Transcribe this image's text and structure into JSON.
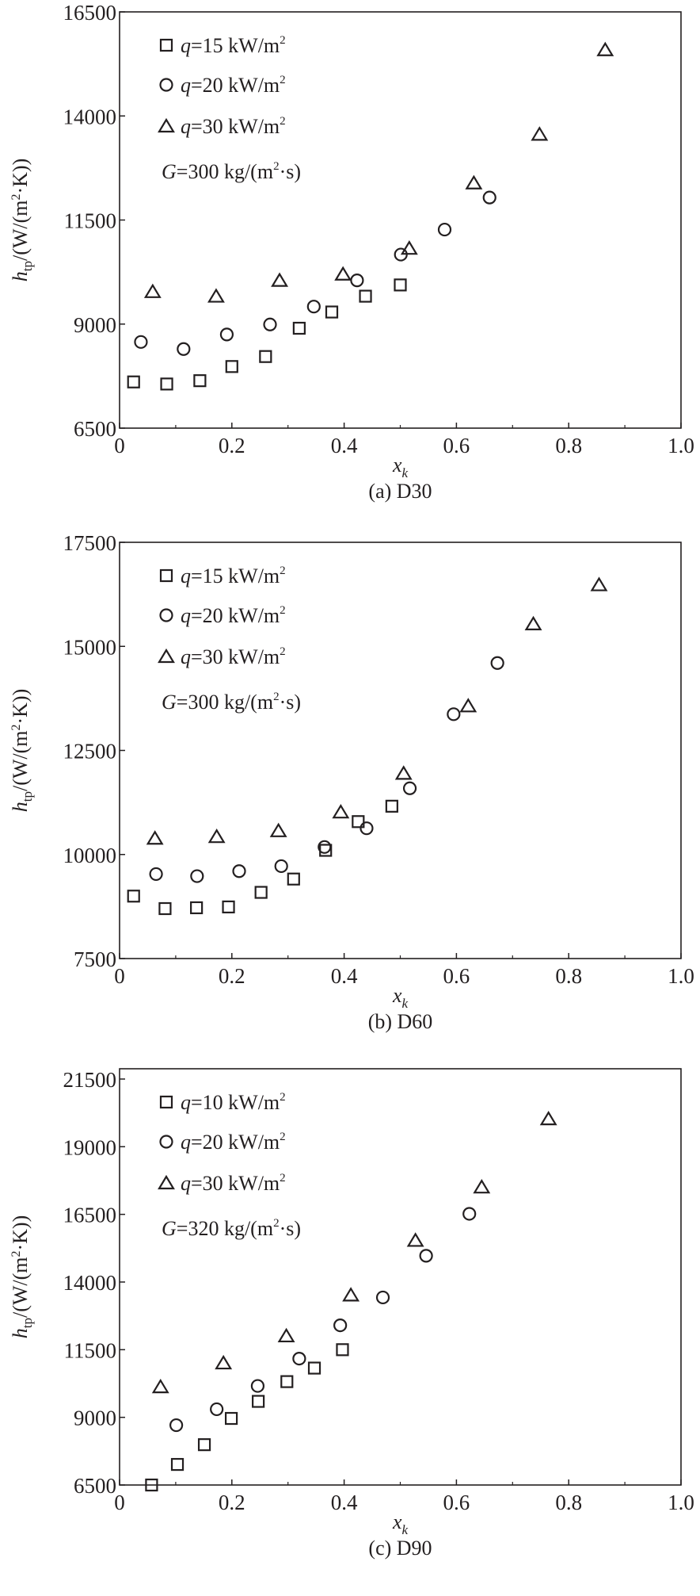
{
  "chart_data": [
    {
      "type": "scatter",
      "caption": "(a) D30",
      "xlabel": "x",
      "xlabel_sub": "k",
      "ylabel": "h",
      "ylabel_sub": "tp",
      "ylabel_unit_pre": "/(W/(m",
      "ylabel_unit_post": "·K))",
      "xlim": [
        0,
        1.0
      ],
      "ylim": [
        6500,
        16500
      ],
      "xticks": [
        "0",
        "0.2",
        "0.4",
        "0.6",
        "0.8",
        "1.0"
      ],
      "yticks": [
        6500,
        9000,
        11500,
        14000,
        16500
      ],
      "legend_position": "top-left",
      "condition": {
        "pre": "G",
        "text": "=300 kg/(m",
        "post": "·s)"
      },
      "series": [
        {
          "name": "q=15 kW/m2",
          "q": "q",
          "label": "=15 kW/m",
          "marker": "square",
          "x": [
            0.025,
            0.084,
            0.143,
            0.2,
            0.26,
            0.32,
            0.378,
            0.438,
            0.5
          ],
          "y": [
            7610,
            7560,
            7640,
            7980,
            8220,
            8900,
            9290,
            9670,
            9940
          ]
        },
        {
          "name": "q=20 kW/m2",
          "q": "q",
          "label": "=20 kW/m",
          "marker": "circle",
          "x": [
            0.038,
            0.114,
            0.191,
            0.268,
            0.346,
            0.423,
            0.501,
            0.579,
            0.659
          ],
          "y": [
            8570,
            8400,
            8750,
            8990,
            9420,
            10050,
            10670,
            11270,
            12040
          ]
        },
        {
          "name": "q=30 kW/m2",
          "q": "q",
          "label": "=30 kW/m",
          "marker": "triangle",
          "x": [
            0.059,
            0.172,
            0.285,
            0.398,
            0.516,
            0.631,
            0.748,
            0.865
          ],
          "y": [
            9780,
            9670,
            10050,
            10200,
            10820,
            12390,
            13560,
            15590
          ]
        }
      ]
    },
    {
      "type": "scatter",
      "caption": "(b) D60",
      "xlabel": "x",
      "xlabel_sub": "k",
      "ylabel": "h",
      "ylabel_sub": "tp",
      "ylabel_unit_pre": "/(W/(m",
      "ylabel_unit_post": "·K))",
      "xlim": [
        0,
        1.0
      ],
      "ylim": [
        7500,
        17500
      ],
      "xticks": [
        "0",
        "0.2",
        "0.4",
        "0.6",
        "0.8",
        "1.0"
      ],
      "yticks": [
        7500,
        10000,
        12500,
        15000,
        17500
      ],
      "legend_position": "top-left",
      "condition": {
        "pre": "G",
        "text": "=300 kg/(m",
        "post": "·s)"
      },
      "series": [
        {
          "name": "q=15 kW/m2",
          "q": "q",
          "label": "=15 kW/m",
          "marker": "square",
          "x": [
            0.025,
            0.081,
            0.137,
            0.194,
            0.252,
            0.31,
            0.367,
            0.425,
            0.485
          ],
          "y": [
            9000,
            8700,
            8720,
            8740,
            9090,
            9410,
            10100,
            10790,
            11160
          ]
        },
        {
          "name": "q=20 kW/m2",
          "q": "q",
          "label": "=20 kW/m",
          "marker": "circle",
          "x": [
            0.065,
            0.138,
            0.213,
            0.288,
            0.365,
            0.44,
            0.517,
            0.595,
            0.673
          ],
          "y": [
            9530,
            9480,
            9600,
            9720,
            10180,
            10630,
            11590,
            13370,
            14600
          ]
        },
        {
          "name": "q=30 kW/m2",
          "q": "q",
          "label": "=30 kW/m",
          "marker": "triangle",
          "x": [
            0.063,
            0.173,
            0.283,
            0.394,
            0.506,
            0.621,
            0.737,
            0.854
          ],
          "y": [
            10390,
            10430,
            10570,
            11020,
            11950,
            13570,
            15540,
            16480
          ]
        }
      ]
    },
    {
      "type": "scatter",
      "caption": "(c) D90",
      "xlabel": "x",
      "xlabel_sub": "k",
      "ylabel": "h",
      "ylabel_sub": "tp",
      "ylabel_unit_pre": "/(W/(m",
      "ylabel_unit_post": "·K))",
      "xlim": [
        0,
        1.0
      ],
      "ylim": [
        6500,
        21880
      ],
      "xticks": [
        "0",
        "0.2",
        "0.4",
        "0.6",
        "0.8",
        "1.0"
      ],
      "yticks": [
        6500,
        9000,
        11500,
        14000,
        16500,
        19000,
        21500
      ],
      "legend_position": "top-left",
      "condition": {
        "pre": "G",
        "text": "=320 kg/(m",
        "post": "·s)"
      },
      "series": [
        {
          "name": "q=10 kW/m2",
          "q": "q",
          "label": "=10 kW/m",
          "marker": "square",
          "x": [
            0.057,
            0.103,
            0.151,
            0.199,
            0.247,
            0.298,
            0.347,
            0.397
          ],
          "y": [
            6500,
            7260,
            7990,
            8960,
            9590,
            10320,
            10820,
            11500
          ]
        },
        {
          "name": "q=20 kW/m2",
          "q": "q",
          "label": "=20 kW/m",
          "marker": "circle",
          "x": [
            0.101,
            0.173,
            0.246,
            0.32,
            0.393,
            0.469,
            0.546,
            0.623
          ],
          "y": [
            8710,
            9300,
            10160,
            11170,
            12400,
            13430,
            14970,
            16520
          ]
        },
        {
          "name": "q=30 kW/m2",
          "q": "q",
          "label": "=30 kW/m",
          "marker": "triangle",
          "x": [
            0.073,
            0.185,
            0.297,
            0.412,
            0.527,
            0.645,
            0.764
          ],
          "y": [
            10130,
            11010,
            12010,
            13520,
            15540,
            17510,
            20030
          ]
        }
      ]
    }
  ],
  "colors": {
    "ink": "#231f20",
    "background": "#ffffff"
  }
}
